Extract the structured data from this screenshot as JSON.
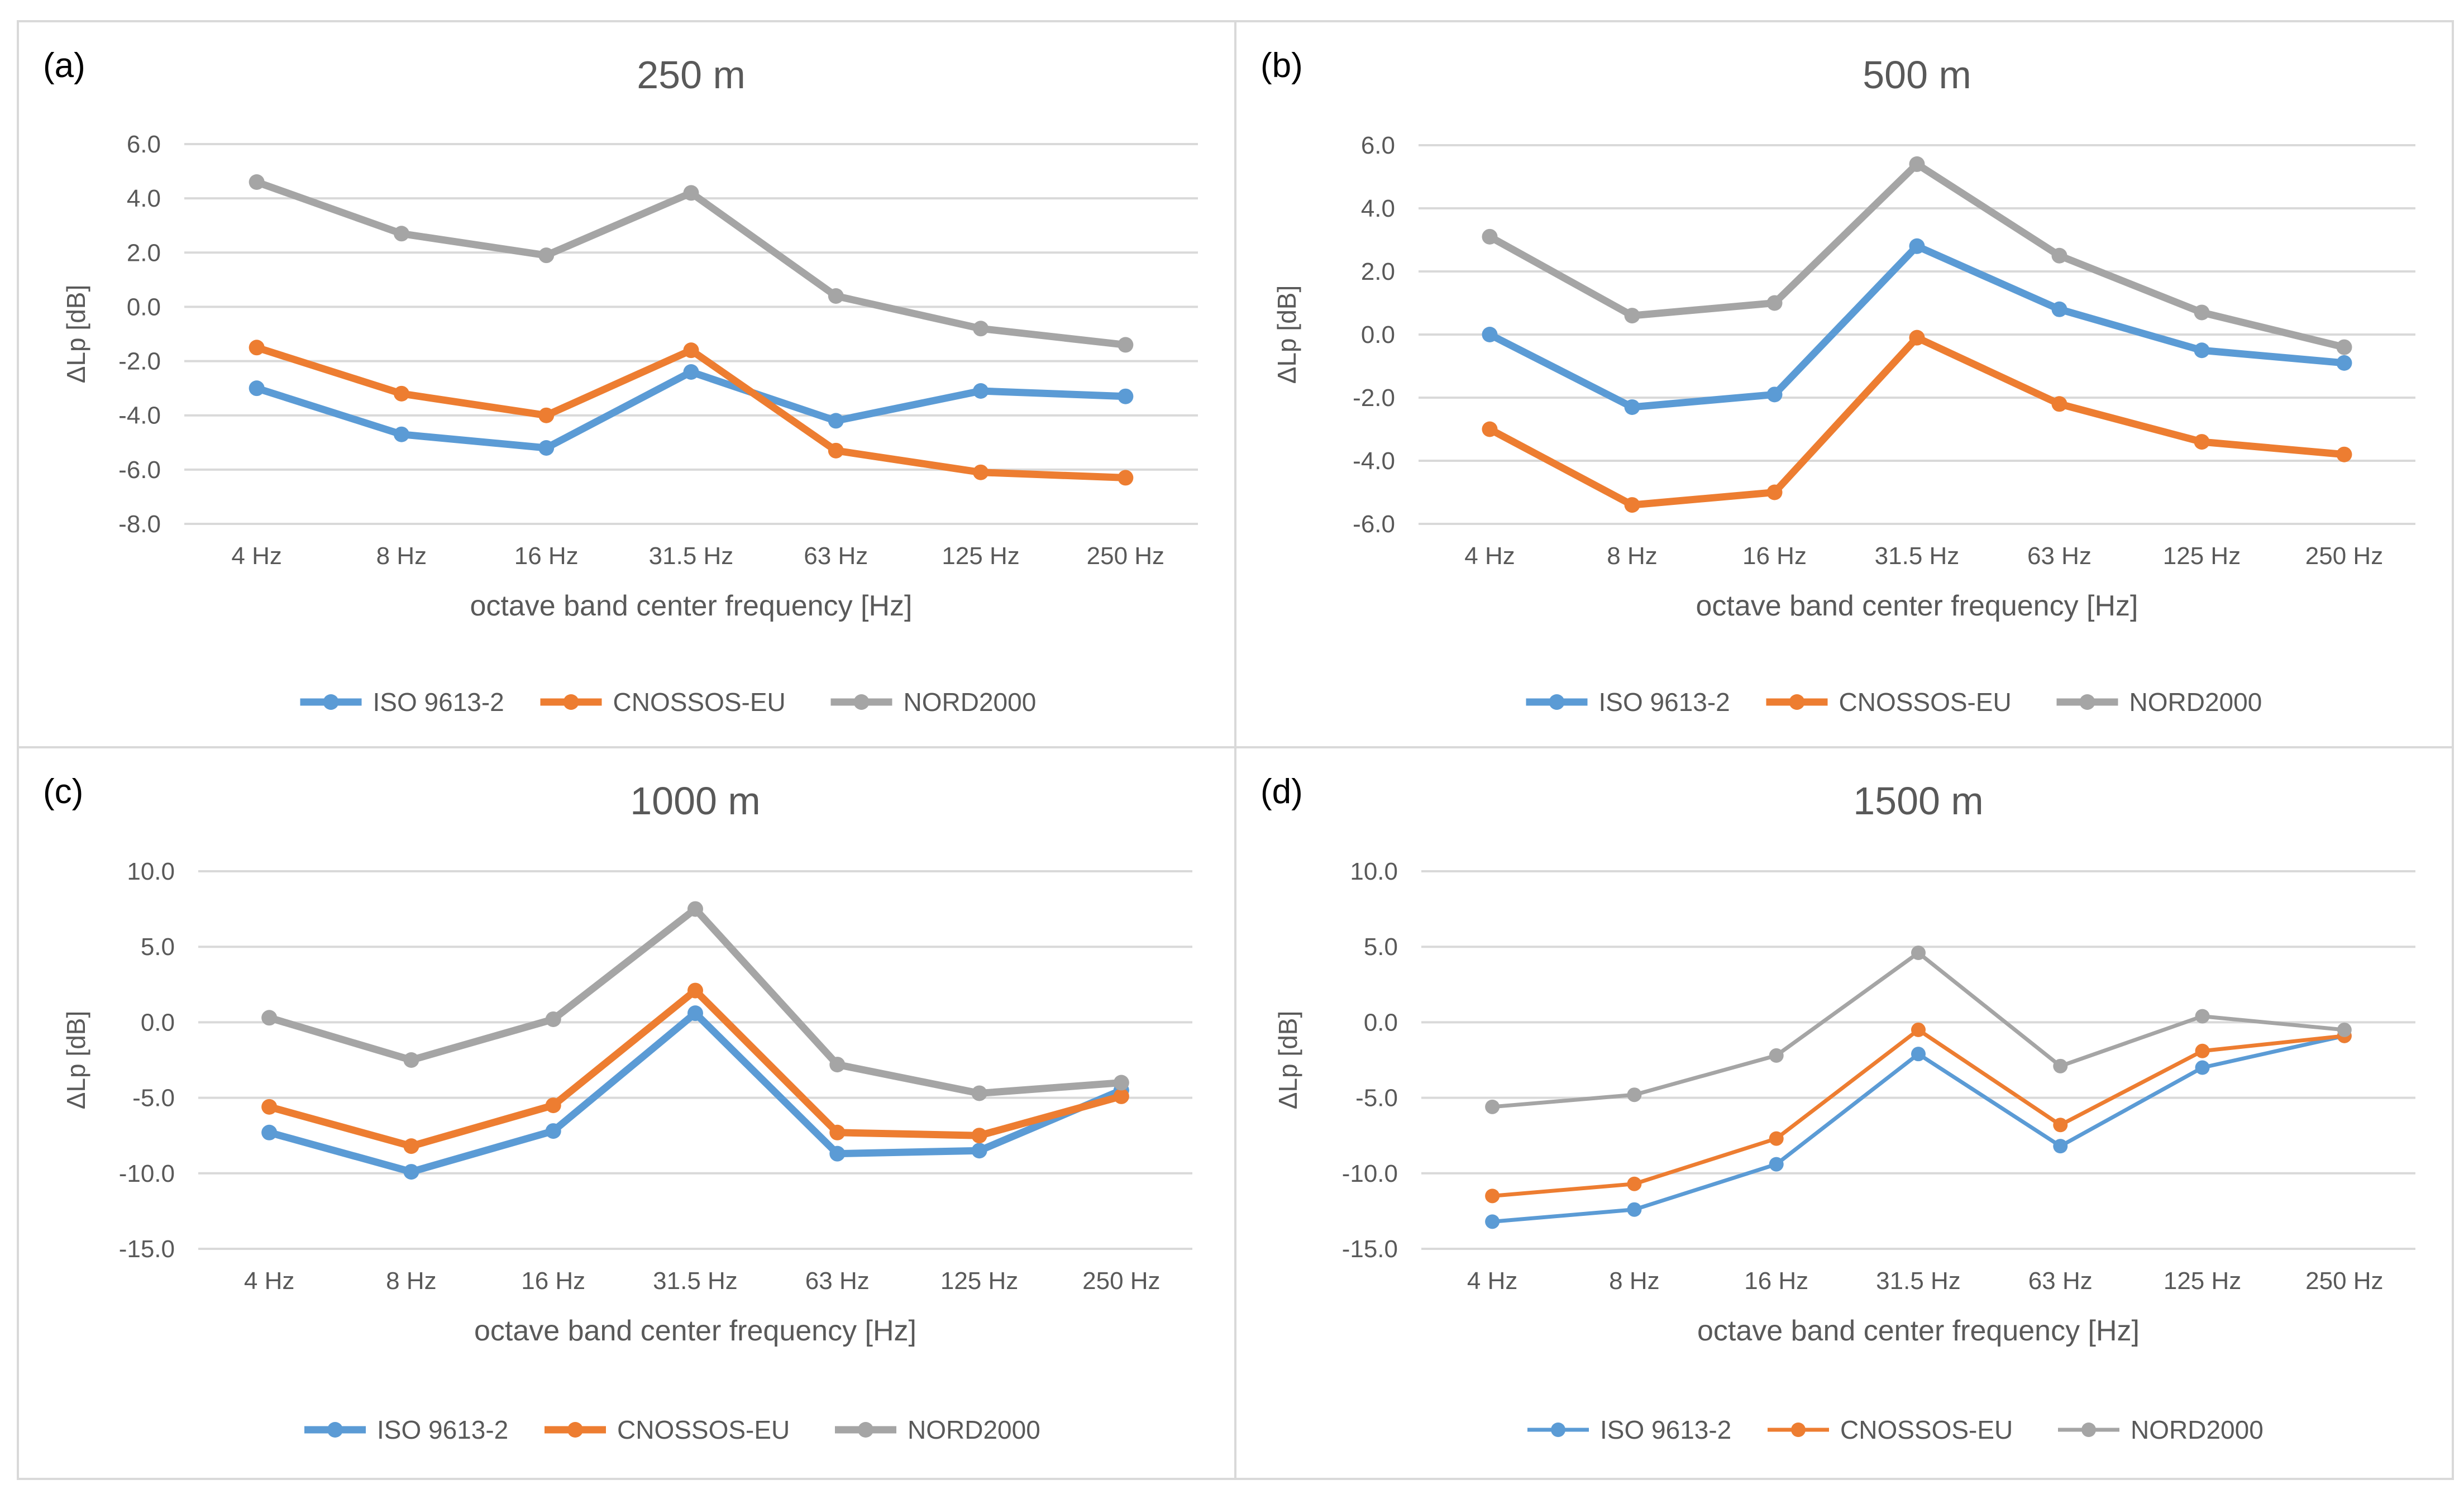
{
  "figure": {
    "background": "#ffffff",
    "border_color": "#d9d9d9",
    "grid_color": "#d9d9d9",
    "text_color": "#595959"
  },
  "series_colors": {
    "ISO 9613-2": "#5b9bd5",
    "CNOSSOS-EU": "#ed7d31",
    "NORD2000": "#a5a5a5"
  },
  "chart_data": [
    {
      "panel": "(a)",
      "type": "line",
      "title": "250 m",
      "xlabel": "octave band center frequency [Hz]",
      "ylabel": "ΔLp [dB]",
      "categories": [
        "4 Hz",
        "8 Hz",
        "16 Hz",
        "31.5 Hz",
        "63 Hz",
        "125 Hz",
        "250 Hz"
      ],
      "ylim": [
        -8,
        6
      ],
      "ystep": 2,
      "yticks": [
        "6.0",
        "4.0",
        "2.0",
        "0.0",
        "-2.0",
        "-4.0",
        "-6.0",
        "-8.0"
      ],
      "grid": true,
      "legend": "bottom",
      "series": [
        {
          "name": "ISO 9613-2",
          "values": [
            -3.0,
            -4.7,
            -5.2,
            -2.4,
            -4.2,
            -3.1,
            -3.3
          ]
        },
        {
          "name": "CNOSSOS-EU",
          "values": [
            -1.5,
            -3.2,
            -4.0,
            -1.6,
            -5.3,
            -6.1,
            -6.3
          ]
        },
        {
          "name": "NORD2000",
          "values": [
            4.6,
            2.7,
            1.9,
            4.2,
            0.4,
            -0.8,
            -1.4
          ]
        }
      ]
    },
    {
      "panel": "(b)",
      "type": "line",
      "title": "500 m",
      "xlabel": "octave band center frequency [Hz]",
      "ylabel": "ΔLp [dB]",
      "categories": [
        "4 Hz",
        "8 Hz",
        "16 Hz",
        "31.5 Hz",
        "63 Hz",
        "125 Hz",
        "250 Hz"
      ],
      "ylim": [
        -6,
        6
      ],
      "ystep": 2,
      "yticks": [
        "6.0",
        "4.0",
        "2.0",
        "0.0",
        "-2.0",
        "-4.0",
        "-6.0"
      ],
      "grid": true,
      "legend": "bottom",
      "series": [
        {
          "name": "ISO 9613-2",
          "values": [
            0.0,
            -2.3,
            -1.9,
            2.8,
            0.8,
            -0.5,
            -0.9
          ]
        },
        {
          "name": "CNOSSOS-EU",
          "values": [
            -3.0,
            -5.4,
            -5.0,
            -0.1,
            -2.2,
            -3.4,
            -3.8
          ]
        },
        {
          "name": "NORD2000",
          "values": [
            3.1,
            0.6,
            1.0,
            5.4,
            2.5,
            0.7,
            -0.4
          ]
        }
      ]
    },
    {
      "panel": "(c)",
      "type": "line",
      "title": "1000 m",
      "xlabel": "octave band center frequency [Hz]",
      "ylabel": "ΔLp [dB]",
      "categories": [
        "4 Hz",
        "8 Hz",
        "16 Hz",
        "31.5 Hz",
        "63 Hz",
        "125 Hz",
        "250 Hz"
      ],
      "ylim": [
        -15,
        10
      ],
      "ystep": 5,
      "yticks": [
        "10.0",
        "5.0",
        "0.0",
        "-5.0",
        "-10.0",
        "-15.0"
      ],
      "grid": true,
      "legend": "bottom",
      "series": [
        {
          "name": "ISO 9613-2",
          "values": [
            -7.3,
            -9.9,
            -7.2,
            0.6,
            -8.7,
            -8.5,
            -4.5
          ]
        },
        {
          "name": "CNOSSOS-EU",
          "values": [
            -5.6,
            -8.2,
            -5.5,
            2.1,
            -7.3,
            -7.5,
            -4.9
          ]
        },
        {
          "name": "NORD2000",
          "values": [
            0.3,
            -2.5,
            0.2,
            7.5,
            -2.8,
            -4.7,
            -4.0
          ]
        }
      ]
    },
    {
      "panel": "(d)",
      "type": "line",
      "title": "1500 m",
      "xlabel": "octave band center frequency [Hz]",
      "ylabel": "ΔLp [dB]",
      "categories": [
        "4 Hz",
        "8 Hz",
        "16 Hz",
        "31.5 Hz",
        "63 Hz",
        "125 Hz",
        "250 Hz"
      ],
      "ylim": [
        -15,
        10
      ],
      "ystep": 5,
      "yticks": [
        "10.0",
        "5.0",
        "0.0",
        "-5.0",
        "-10.0",
        "-15.0"
      ],
      "grid": true,
      "legend": "bottom",
      "series": [
        {
          "name": "ISO 9613-2",
          "values": [
            -13.2,
            -12.4,
            -9.4,
            -2.1,
            -8.2,
            -3.0,
            -0.9
          ]
        },
        {
          "name": "CNOSSOS-EU",
          "values": [
            -11.5,
            -10.7,
            -7.7,
            -0.5,
            -6.8,
            -1.9,
            -0.9
          ]
        },
        {
          "name": "NORD2000",
          "values": [
            -5.6,
            -4.8,
            -2.2,
            4.6,
            -2.9,
            0.4,
            -0.5
          ]
        }
      ]
    }
  ]
}
